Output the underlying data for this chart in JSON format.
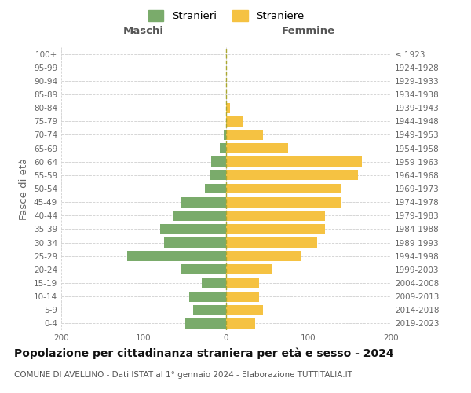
{
  "age_groups": [
    "0-4",
    "5-9",
    "10-14",
    "15-19",
    "20-24",
    "25-29",
    "30-34",
    "35-39",
    "40-44",
    "45-49",
    "50-54",
    "55-59",
    "60-64",
    "65-69",
    "70-74",
    "75-79",
    "80-84",
    "85-89",
    "90-94",
    "95-99",
    "100+"
  ],
  "birth_years": [
    "2019-2023",
    "2014-2018",
    "2009-2013",
    "2004-2008",
    "1999-2003",
    "1994-1998",
    "1989-1993",
    "1984-1988",
    "1979-1983",
    "1974-1978",
    "1969-1973",
    "1964-1968",
    "1959-1963",
    "1954-1958",
    "1949-1953",
    "1944-1948",
    "1939-1943",
    "1934-1938",
    "1929-1933",
    "1924-1928",
    "≤ 1923"
  ],
  "males": [
    50,
    40,
    45,
    30,
    55,
    120,
    75,
    80,
    65,
    55,
    26,
    20,
    18,
    8,
    3,
    0,
    0,
    0,
    0,
    0,
    0
  ],
  "females": [
    35,
    45,
    40,
    40,
    55,
    90,
    110,
    120,
    120,
    140,
    140,
    160,
    165,
    75,
    45,
    20,
    5,
    0,
    0,
    0,
    0
  ],
  "male_color": "#7aab6b",
  "female_color": "#f5c242",
  "male_label": "Stranieri",
  "female_label": "Straniere",
  "title": "Popolazione per cittadinanza straniera per età e sesso - 2024",
  "subtitle": "COMUNE DI AVELLINO - Dati ISTAT al 1° gennaio 2024 - Elaborazione TUTTITALIA.IT",
  "xlabel_left": "Maschi",
  "xlabel_right": "Femmine",
  "ylabel_left": "Fasce di età",
  "xlim": 200,
  "background_color": "#ffffff",
  "grid_color": "#d0d0d0",
  "bar_height": 0.75,
  "dashed_line_color": "#aaa830",
  "title_fontsize": 10,
  "subtitle_fontsize": 7.5,
  "tick_fontsize": 7.5,
  "label_fontsize": 9.5
}
